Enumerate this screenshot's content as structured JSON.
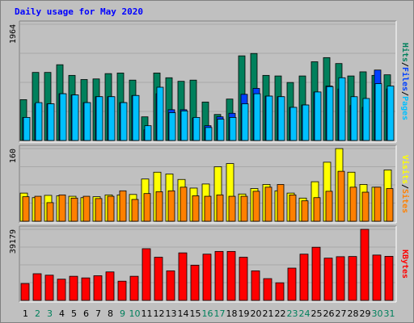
{
  "title": "Daily usage for May 2020",
  "colors": {
    "hits": "#00805c",
    "files": "#0040ff",
    "pages": "#00c0ff",
    "visits": "#ffff00",
    "sites": "#ff8000",
    "kbytes": "#ff0000",
    "weekday": "#000000",
    "weekend": "#00805c"
  },
  "right_labels": {
    "panel1": [
      "Hits",
      "/",
      "Files",
      "/",
      "Pages"
    ],
    "panel2": [
      "Visits",
      "/",
      "Sites"
    ],
    "panel3": [
      "KBytes"
    ]
  },
  "chart_data": [
    {
      "type": "bar",
      "panel": "hits-files-pages",
      "ylabel_max": "1964",
      "ylim": [
        0,
        1964
      ],
      "categories": [
        "1",
        "2",
        "3",
        "4",
        "5",
        "6",
        "7",
        "8",
        "9",
        "10",
        "11",
        "12",
        "13",
        "14",
        "15",
        "16",
        "17",
        "18",
        "19",
        "20",
        "21",
        "22",
        "23",
        "24",
        "25",
        "26",
        "27",
        "28",
        "29",
        "30",
        "31"
      ],
      "weekend": [
        2,
        3,
        9,
        10,
        16,
        17,
        23,
        24,
        30,
        31
      ],
      "series": [
        {
          "name": "Hits",
          "values": [
            690,
            1150,
            1150,
            1280,
            1100,
            1030,
            1040,
            1130,
            1140,
            1020,
            400,
            1140,
            1060,
            1000,
            1020,
            650,
            440,
            700,
            1430,
            1470,
            1100,
            1090,
            980,
            1090,
            1330,
            1400,
            1300,
            1090,
            1160,
            1100,
            1110
          ]
        },
        {
          "name": "Files",
          "values": [
            390,
            620,
            620,
            790,
            770,
            640,
            740,
            740,
            640,
            760,
            180,
            790,
            520,
            520,
            380,
            250,
            400,
            460,
            780,
            880,
            750,
            740,
            560,
            600,
            820,
            920,
            870,
            590,
            560,
            1190,
            870
          ]
        },
        {
          "name": "Pages",
          "values": [
            390,
            640,
            620,
            790,
            770,
            640,
            740,
            740,
            640,
            760,
            250,
            900,
            470,
            500,
            390,
            220,
            360,
            390,
            620,
            790,
            750,
            740,
            560,
            600,
            820,
            910,
            1060,
            740,
            710,
            960,
            920
          ]
        }
      ]
    },
    {
      "type": "bar",
      "panel": "visits-sites",
      "ylabel_max": "160",
      "ylim": [
        0,
        160
      ],
      "categories": [
        "1",
        "2",
        "3",
        "4",
        "5",
        "6",
        "7",
        "8",
        "9",
        "10",
        "11",
        "12",
        "13",
        "14",
        "15",
        "16",
        "17",
        "18",
        "19",
        "20",
        "21",
        "22",
        "23",
        "24",
        "25",
        "26",
        "27",
        "28",
        "29",
        "30",
        "31"
      ],
      "series": [
        {
          "name": "Visits",
          "values": [
            62,
            52,
            57,
            56,
            55,
            52,
            54,
            58,
            58,
            59,
            93,
            108,
            104,
            92,
            73,
            82,
            120,
            127,
            60,
            72,
            81,
            67,
            62,
            51,
            87,
            130,
            160,
            108,
            81,
            75,
            113
          ]
        },
        {
          "name": "Sites",
          "values": [
            54,
            55,
            41,
            58,
            51,
            55,
            50,
            55,
            67,
            48,
            61,
            65,
            67,
            75,
            56,
            55,
            58,
            55,
            55,
            66,
            75,
            81,
            58,
            45,
            52,
            66,
            110,
            75,
            64,
            75,
            72
          ]
        }
      ]
    },
    {
      "type": "bar",
      "panel": "kbytes",
      "ylabel_max": "39179",
      "ylim": [
        0,
        39179
      ],
      "categories": [
        "1",
        "2",
        "3",
        "4",
        "5",
        "6",
        "7",
        "8",
        "9",
        "10",
        "11",
        "12",
        "13",
        "14",
        "15",
        "16",
        "17",
        "18",
        "19",
        "20",
        "21",
        "22",
        "23",
        "24",
        "25",
        "26",
        "27",
        "28",
        "29",
        "30",
        "31"
      ],
      "series": [
        {
          "name": "KBytes",
          "values": [
            9300,
            14700,
            13900,
            11700,
            13300,
            12400,
            13600,
            15700,
            10600,
            13300,
            28500,
            23800,
            16300,
            26200,
            19400,
            25500,
            27000,
            27000,
            23800,
            16300,
            12000,
            9700,
            17800,
            25500,
            29300,
            23300,
            24100,
            24200,
            39179,
            25000,
            24300
          ]
        }
      ]
    }
  ]
}
